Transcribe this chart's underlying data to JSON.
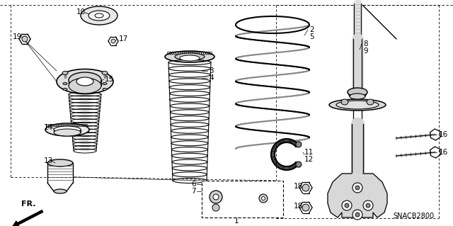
{
  "bg_color": "#ffffff",
  "snacb_text": "SNACB2800",
  "part_color_light": "#d8d8d8",
  "part_color_mid": "#b0b0b0",
  "part_color_dark": "#888888"
}
